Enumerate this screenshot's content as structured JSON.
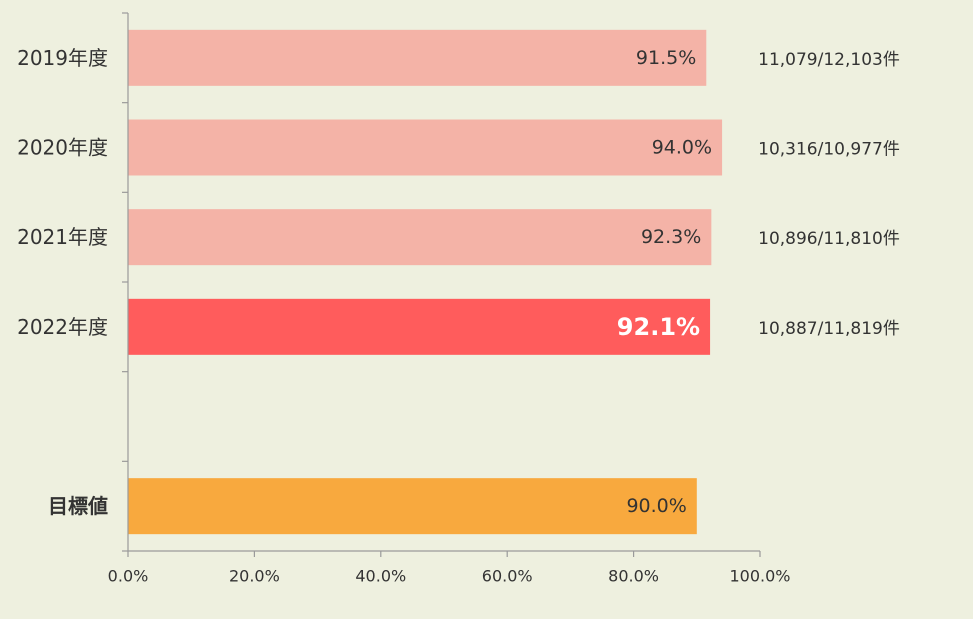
{
  "chart_data": {
    "type": "bar",
    "orientation": "horizontal",
    "title": "",
    "xlabel": "",
    "ylabel": "",
    "xlim": [
      0,
      100
    ],
    "x_ticks": [
      "0.0%",
      "20.0%",
      "40.0%",
      "60.0%",
      "80.0%",
      "100.0%"
    ],
    "x_tick_values": [
      0,
      20,
      40,
      60,
      80,
      100
    ],
    "grid": false,
    "legend": "none",
    "categories": [
      "2019年度",
      "2020年度",
      "2021年度",
      "2022年度",
      "",
      "目標値"
    ],
    "bars": [
      {
        "category": "2019年度",
        "value": 91.5,
        "label": "91.5%",
        "count": "11,079/12,103件",
        "color": "#f4b3a7",
        "label_color": "#333333",
        "emphasis": false
      },
      {
        "category": "2020年度",
        "value": 94.0,
        "label": "94.0%",
        "count": "10,316/10,977件",
        "color": "#f4b3a7",
        "label_color": "#333333",
        "emphasis": false
      },
      {
        "category": "2021年度",
        "value": 92.3,
        "label": "92.3%",
        "count": "10,896/11,810件",
        "color": "#f4b3a7",
        "label_color": "#333333",
        "emphasis": false
      },
      {
        "category": "2022年度",
        "value": 92.1,
        "label": "92.1%",
        "count": "10,887/11,819件",
        "color": "#ff5c5c",
        "label_color": "#ffffff",
        "emphasis": true
      },
      {
        "category": "",
        "value": null,
        "label": "",
        "count": "",
        "color": "",
        "label_color": "",
        "emphasis": false
      },
      {
        "category": "目標値",
        "value": 90.0,
        "label": "90.0%",
        "count": "",
        "color": "#f8a93e",
        "label_color": "#333333",
        "emphasis": false
      }
    ]
  },
  "colors": {
    "background": "#eef0df",
    "axis": "#9a9a9a",
    "text": "#333333"
  }
}
